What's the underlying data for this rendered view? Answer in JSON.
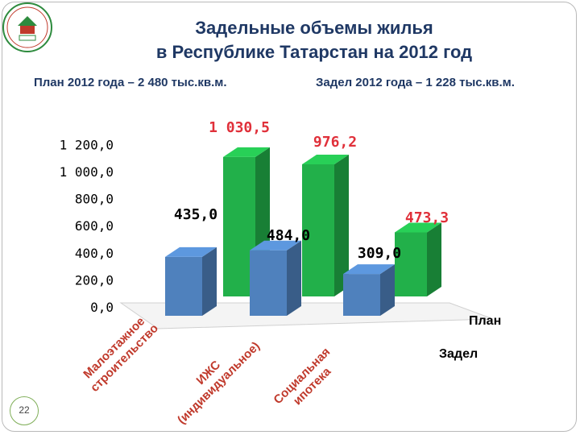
{
  "slide": {
    "title_line1": "Задельные объемы жилья",
    "title_line2": "в Республике Татарстан на 2012 год",
    "plan_note": "План 2012 года – 2 480 тыс.кв.м.",
    "backlog_note": "Задел 2012 года – 1 228 тыс.кв.м.",
    "page_number": "22"
  },
  "colors": {
    "plan": "#22b04a",
    "backlog": "#4f81bd",
    "title": "#1f3864",
    "value_label": "#ff0000"
  },
  "chart_data": {
    "type": "bar",
    "categories": [
      [
        "Малоэтажное",
        "строительство"
      ],
      [
        "ИЖС",
        "(индивидуальное)"
      ],
      [
        "Социальная",
        "ипотека"
      ]
    ],
    "series": [
      {
        "name": "План",
        "values": [
          1030.5,
          976.2,
          473.3
        ],
        "labels": [
          "1 030,5",
          "976,2",
          "473,3"
        ]
      },
      {
        "name": "Задел",
        "values": [
          435.0,
          484.0,
          309.0
        ],
        "labels": [
          "435,0",
          "484,0",
          "309,0"
        ]
      }
    ],
    "y_ticks": [
      "0,0",
      "200,0",
      "400,0",
      "600,0",
      "800,0",
      "1 000,0",
      "1 200,0"
    ],
    "ylim": [
      0,
      1200
    ],
    "grid": false,
    "legend": "right"
  }
}
